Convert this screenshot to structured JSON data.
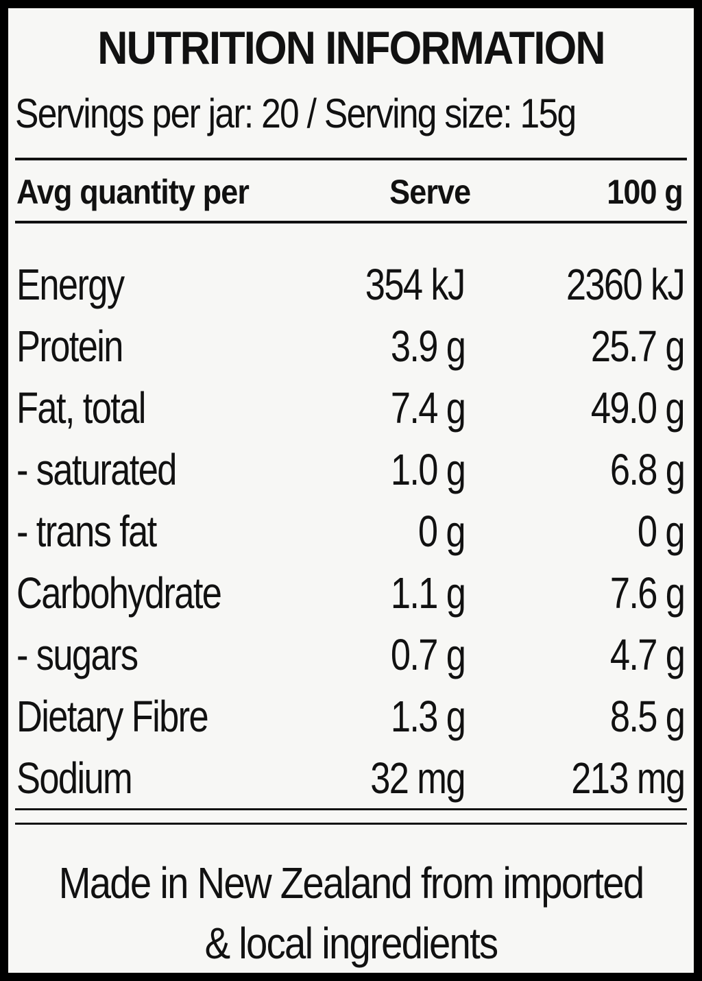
{
  "label": {
    "title": "NUTRITION INFORMATION",
    "serving_line": "Servings per jar: 20 / Serving size: 15g",
    "columns": {
      "name": "Avg quantity per",
      "serve": "Serve",
      "per100": "100 g"
    },
    "rows": [
      {
        "name": "Energy",
        "serve": "354 kJ",
        "per100": "2360 kJ"
      },
      {
        "name": "Protein",
        "serve": "3.9 g",
        "per100": "25.7 g"
      },
      {
        "name": "Fat, total",
        "serve": "7.4 g",
        "per100": "49.0 g"
      },
      {
        "name": "- saturated",
        "serve": "1.0 g",
        "per100": "6.8 g"
      },
      {
        "name": "- trans fat",
        "serve": "0 g",
        "per100": "0 g"
      },
      {
        "name": "Carbohydrate",
        "serve": "1.1 g",
        "per100": "7.6 g"
      },
      {
        "name": "- sugars",
        "serve": "0.7 g",
        "per100": "4.7 g"
      },
      {
        "name": "Dietary Fibre",
        "serve": "1.3 g",
        "per100": "8.5 g"
      },
      {
        "name": "Sodium",
        "serve": "32 mg",
        "per100": "213 mg"
      }
    ],
    "footer_line1": "Made in New Zealand from imported",
    "footer_line2": "& local ingredients"
  },
  "colors": {
    "frame": "#000000",
    "background": "#f7f7f5",
    "text": "#111111"
  }
}
